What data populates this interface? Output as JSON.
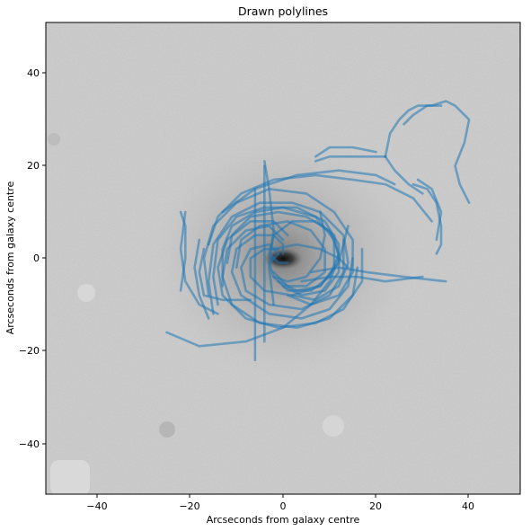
{
  "chart_data": {
    "type": "line",
    "title": "Drawn polylines",
    "xlabel": "Arcseconds from galaxy centre",
    "ylabel": "Arcseconds from galaxy centre",
    "xlim": [
      -51,
      51
    ],
    "ylim": [
      -51,
      51
    ],
    "xticks": [
      -40,
      -20,
      0,
      20,
      40
    ],
    "yticks": [
      -40,
      -20,
      0,
      20,
      40
    ],
    "xtick_labels": [
      "−40",
      "−20",
      "0",
      "20",
      "40"
    ],
    "ytick_labels": [
      "−40",
      "−20",
      "0",
      "20",
      "40"
    ],
    "grid": false,
    "background": "grayscale galaxy image",
    "line_color": "#1f77b4",
    "series": [
      {
        "values": [
          [
            -25,
            -16
          ],
          [
            -18,
            -19
          ],
          [
            -8,
            -18
          ],
          [
            0,
            -15
          ],
          [
            6,
            -10
          ],
          [
            10,
            -5
          ],
          [
            12,
            0
          ],
          [
            11,
            5
          ],
          [
            7,
            8
          ],
          [
            2,
            8
          ],
          [
            -2,
            5
          ],
          [
            -3,
            1
          ],
          [
            -1,
            -1
          ],
          [
            1,
            -1
          ]
        ]
      },
      {
        "values": [
          [
            -14,
            -10
          ],
          [
            -15,
            -4
          ],
          [
            -14,
            4
          ],
          [
            -10,
            9
          ],
          [
            -4,
            11
          ],
          [
            3,
            11
          ],
          [
            9,
            8
          ],
          [
            12,
            3
          ],
          [
            12,
            -3
          ],
          [
            9,
            -7
          ],
          [
            4,
            -8
          ],
          [
            0,
            -6
          ]
        ]
      },
      {
        "values": [
          [
            -16,
            -8
          ],
          [
            -17,
            0
          ],
          [
            -15,
            7
          ],
          [
            -10,
            12
          ],
          [
            -3,
            15
          ],
          [
            5,
            14
          ],
          [
            11,
            10
          ],
          [
            15,
            4
          ],
          [
            15,
            -3
          ],
          [
            12,
            -8
          ],
          [
            6,
            -10
          ],
          [
            1,
            -8
          ]
        ]
      },
      {
        "values": [
          [
            -13,
            -6
          ],
          [
            -13,
            2
          ],
          [
            -11,
            7
          ],
          [
            -6,
            10
          ],
          [
            0,
            11
          ],
          [
            7,
            9
          ],
          [
            11,
            4
          ],
          [
            11,
            -2
          ],
          [
            8,
            -6
          ],
          [
            3,
            -7
          ],
          [
            -1,
            -5
          ]
        ]
      },
      {
        "values": [
          [
            -15,
            -12
          ],
          [
            -16,
            -5
          ],
          [
            -15,
            3
          ],
          [
            -11,
            9
          ],
          [
            -5,
            12
          ],
          [
            2,
            12
          ],
          [
            8,
            10
          ],
          [
            13,
            5
          ],
          [
            14,
            -1
          ],
          [
            12,
            -6
          ],
          [
            7,
            -9
          ],
          [
            2,
            -8
          ]
        ]
      },
      {
        "values": [
          [
            15,
            0
          ],
          [
            14,
            -6
          ],
          [
            10,
            -11
          ],
          [
            4,
            -13
          ],
          [
            -3,
            -12
          ],
          [
            -9,
            -8
          ],
          [
            -11,
            -3
          ],
          [
            -10,
            2
          ],
          [
            -6,
            5
          ],
          [
            -2,
            5
          ],
          [
            0,
            3
          ],
          [
            0,
            1
          ]
        ]
      },
      {
        "values": [
          [
            16,
            -2
          ],
          [
            15,
            -8
          ],
          [
            10,
            -13
          ],
          [
            3,
            -15
          ],
          [
            -5,
            -14
          ],
          [
            -11,
            -10
          ],
          [
            -13,
            -4
          ],
          [
            -12,
            2
          ],
          [
            -8,
            6
          ],
          [
            -3,
            7
          ],
          [
            0,
            4
          ]
        ]
      },
      {
        "values": [
          [
            13,
            4
          ],
          [
            13,
            -3
          ],
          [
            10,
            -8
          ],
          [
            4,
            -11
          ],
          [
            -3,
            -10
          ],
          [
            -8,
            -7
          ],
          [
            -9,
            -2
          ],
          [
            -7,
            2
          ],
          [
            -3,
            3
          ],
          [
            -1,
            1
          ]
        ]
      },
      {
        "values": [
          [
            17,
            2
          ],
          [
            17,
            -5
          ],
          [
            13,
            -11
          ],
          [
            7,
            -14
          ],
          [
            -1,
            -15
          ],
          [
            -8,
            -13
          ],
          [
            -13,
            -8
          ],
          [
            -14,
            -2
          ],
          [
            -12,
            4
          ],
          [
            -7,
            8
          ],
          [
            -2,
            8
          ],
          [
            1,
            5
          ]
        ]
      },
      {
        "values": [
          [
            -12,
            -1
          ],
          [
            -11,
            5
          ],
          [
            -7,
            9
          ],
          [
            -1,
            10
          ],
          [
            5,
            9
          ],
          [
            10,
            6
          ],
          [
            12,
            1
          ],
          [
            10,
            -4
          ],
          [
            6,
            -7
          ],
          [
            1,
            -7
          ],
          [
            -2,
            -4
          ]
        ]
      },
      {
        "values": [
          [
            -10,
            -2
          ],
          [
            -9,
            4
          ],
          [
            -5,
            7
          ],
          [
            1,
            8
          ],
          [
            6,
            6
          ],
          [
            9,
            2
          ],
          [
            9,
            -3
          ],
          [
            5,
            -6
          ],
          [
            1,
            -6
          ],
          [
            -2,
            -3
          ]
        ]
      },
      {
        "values": [
          [
            14,
            7
          ],
          [
            12,
            -1
          ],
          [
            8,
            -6
          ],
          [
            2,
            -8
          ],
          [
            -4,
            -7
          ],
          [
            -7,
            -4
          ],
          [
            -7,
            0
          ],
          [
            -4,
            2
          ],
          [
            -1,
            2
          ]
        ]
      },
      {
        "values": [
          [
            8,
            10
          ],
          [
            9,
            5
          ],
          [
            8,
            0
          ],
          [
            5,
            -4
          ],
          [
            1,
            -5
          ],
          [
            -2,
            -4
          ],
          [
            -3,
            -1
          ],
          [
            -1,
            1
          ]
        ]
      },
      {
        "values": [
          [
            -16,
            3
          ],
          [
            -14,
            9
          ],
          [
            -9,
            14
          ],
          [
            -2,
            17
          ],
          [
            7,
            18
          ],
          [
            15,
            17
          ],
          [
            22,
            16
          ],
          [
            28,
            13
          ],
          [
            32,
            8
          ]
        ]
      },
      {
        "values": [
          [
            -13,
            10
          ],
          [
            -6,
            15
          ],
          [
            3,
            18
          ],
          [
            12,
            19
          ],
          [
            20,
            18
          ],
          [
            24,
            16
          ]
        ]
      },
      {
        "values": [
          [
            -7,
            -9
          ],
          [
            -13,
            -9
          ],
          [
            -17,
            -8
          ],
          [
            -18,
            -3
          ],
          [
            -17,
            2
          ]
        ]
      },
      {
        "values": [
          [
            -14,
            -12
          ],
          [
            -18,
            -10
          ],
          [
            -21,
            -5
          ],
          [
            -22,
            2
          ],
          [
            -21,
            10
          ]
        ]
      },
      {
        "values": [
          [
            -22,
            -7
          ],
          [
            -21,
            0
          ],
          [
            -21,
            7
          ],
          [
            -22,
            10
          ]
        ]
      },
      {
        "values": [
          [
            -16,
            -13
          ],
          [
            -18,
            -8
          ],
          [
            -19,
            -2
          ],
          [
            -18,
            4
          ]
        ]
      },
      {
        "values": [
          [
            -6,
            -22
          ],
          [
            -6,
            -10
          ],
          [
            -6,
            0
          ],
          [
            -6,
            10
          ],
          [
            -6,
            15
          ]
        ]
      },
      {
        "values": [
          [
            -4,
            -18
          ],
          [
            -4,
            -8
          ],
          [
            -4,
            2
          ],
          [
            -4,
            12
          ],
          [
            -4,
            20
          ]
        ]
      },
      {
        "values": [
          [
            -2,
            -10
          ],
          [
            -3,
            -2
          ],
          [
            -2,
            6
          ],
          [
            -3,
            15
          ],
          [
            -4,
            21
          ]
        ]
      },
      {
        "values": [
          [
            6,
            -3
          ],
          [
            12,
            -2
          ],
          [
            18,
            -3
          ],
          [
            26,
            -4
          ],
          [
            35,
            -5
          ]
        ]
      },
      {
        "values": [
          [
            4,
            -5
          ],
          [
            10,
            -4
          ],
          [
            16,
            -4
          ],
          [
            22,
            -5
          ],
          [
            30,
            -4
          ]
        ]
      },
      {
        "values": [
          [
            -2,
            2
          ],
          [
            3,
            3
          ],
          [
            8,
            2
          ],
          [
            12,
            0
          ],
          [
            14,
            -2
          ]
        ]
      },
      {
        "values": [
          [
            7,
            21
          ],
          [
            10,
            22
          ],
          [
            14,
            22
          ],
          [
            18,
            22
          ],
          [
            22,
            22
          ]
        ]
      },
      {
        "values": [
          [
            22,
            22
          ],
          [
            24,
            19
          ],
          [
            27,
            16
          ],
          [
            30,
            14
          ]
        ]
      },
      {
        "values": [
          [
            7,
            22
          ],
          [
            10,
            24
          ],
          [
            15,
            24
          ],
          [
            20,
            23
          ]
        ]
      },
      {
        "values": [
          [
            22,
            22
          ],
          [
            23,
            27
          ],
          [
            25,
            30
          ],
          [
            27,
            32
          ],
          [
            29,
            33
          ],
          [
            32,
            33
          ],
          [
            35,
            34
          ],
          [
            37,
            33
          ],
          [
            40,
            30
          ],
          [
            39,
            25
          ],
          [
            37,
            20
          ],
          [
            38,
            16
          ],
          [
            40,
            12
          ]
        ]
      },
      {
        "values": [
          [
            28,
            16
          ],
          [
            31,
            15
          ],
          [
            33,
            12
          ],
          [
            34,
            7
          ],
          [
            34,
            3
          ],
          [
            33,
            1
          ]
        ]
      },
      {
        "values": [
          [
            26,
            29
          ],
          [
            28,
            31
          ],
          [
            31,
            33
          ],
          [
            34,
            33
          ]
        ]
      },
      {
        "values": [
          [
            29,
            17
          ],
          [
            32,
            15
          ],
          [
            34,
            10
          ],
          [
            33,
            4
          ]
        ]
      }
    ]
  }
}
